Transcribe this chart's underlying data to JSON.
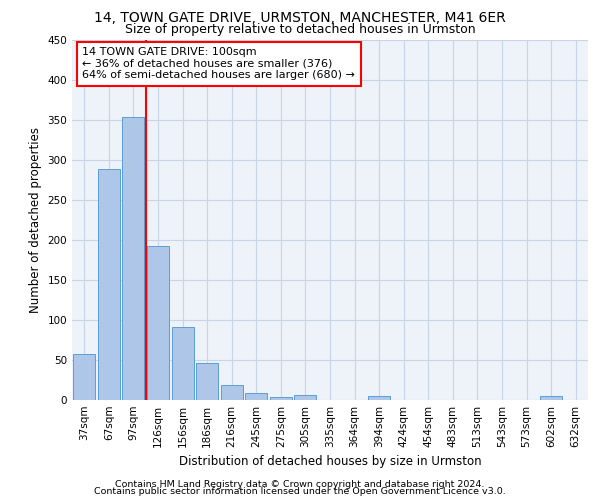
{
  "title1": "14, TOWN GATE DRIVE, URMSTON, MANCHESTER, M41 6ER",
  "title2": "Size of property relative to detached houses in Urmston",
  "xlabel": "Distribution of detached houses by size in Urmston",
  "ylabel": "Number of detached properties",
  "footer1": "Contains HM Land Registry data © Crown copyright and database right 2024.",
  "footer2": "Contains public sector information licensed under the Open Government Licence v3.0.",
  "categories": [
    "37sqm",
    "67sqm",
    "97sqm",
    "126sqm",
    "156sqm",
    "186sqm",
    "216sqm",
    "245sqm",
    "275sqm",
    "305sqm",
    "335sqm",
    "364sqm",
    "394sqm",
    "424sqm",
    "454sqm",
    "483sqm",
    "513sqm",
    "543sqm",
    "573sqm",
    "602sqm",
    "632sqm"
  ],
  "values": [
    57,
    289,
    354,
    192,
    91,
    46,
    19,
    9,
    4,
    6,
    0,
    0,
    5,
    0,
    0,
    0,
    0,
    0,
    0,
    5,
    0
  ],
  "bar_color": "#aec6e8",
  "bar_edge_color": "#5a9fd4",
  "annotation_line1": "14 TOWN GATE DRIVE: 100sqm",
  "annotation_line2": "← 36% of detached houses are smaller (376)",
  "annotation_line3": "64% of semi-detached houses are larger (680) →",
  "annotation_box_color": "white",
  "annotation_box_edge_color": "red",
  "vline_x": 2.5,
  "vline_color": "red",
  "ylim": [
    0,
    450
  ],
  "yticks": [
    0,
    50,
    100,
    150,
    200,
    250,
    300,
    350,
    400,
    450
  ],
  "bg_color": "#eef2f9",
  "grid_color": "#c8d4e8",
  "title1_fontsize": 10,
  "title2_fontsize": 9,
  "axis_label_fontsize": 8.5,
  "tick_fontsize": 7.5,
  "annotation_fontsize": 8,
  "footer_fontsize": 6.8
}
